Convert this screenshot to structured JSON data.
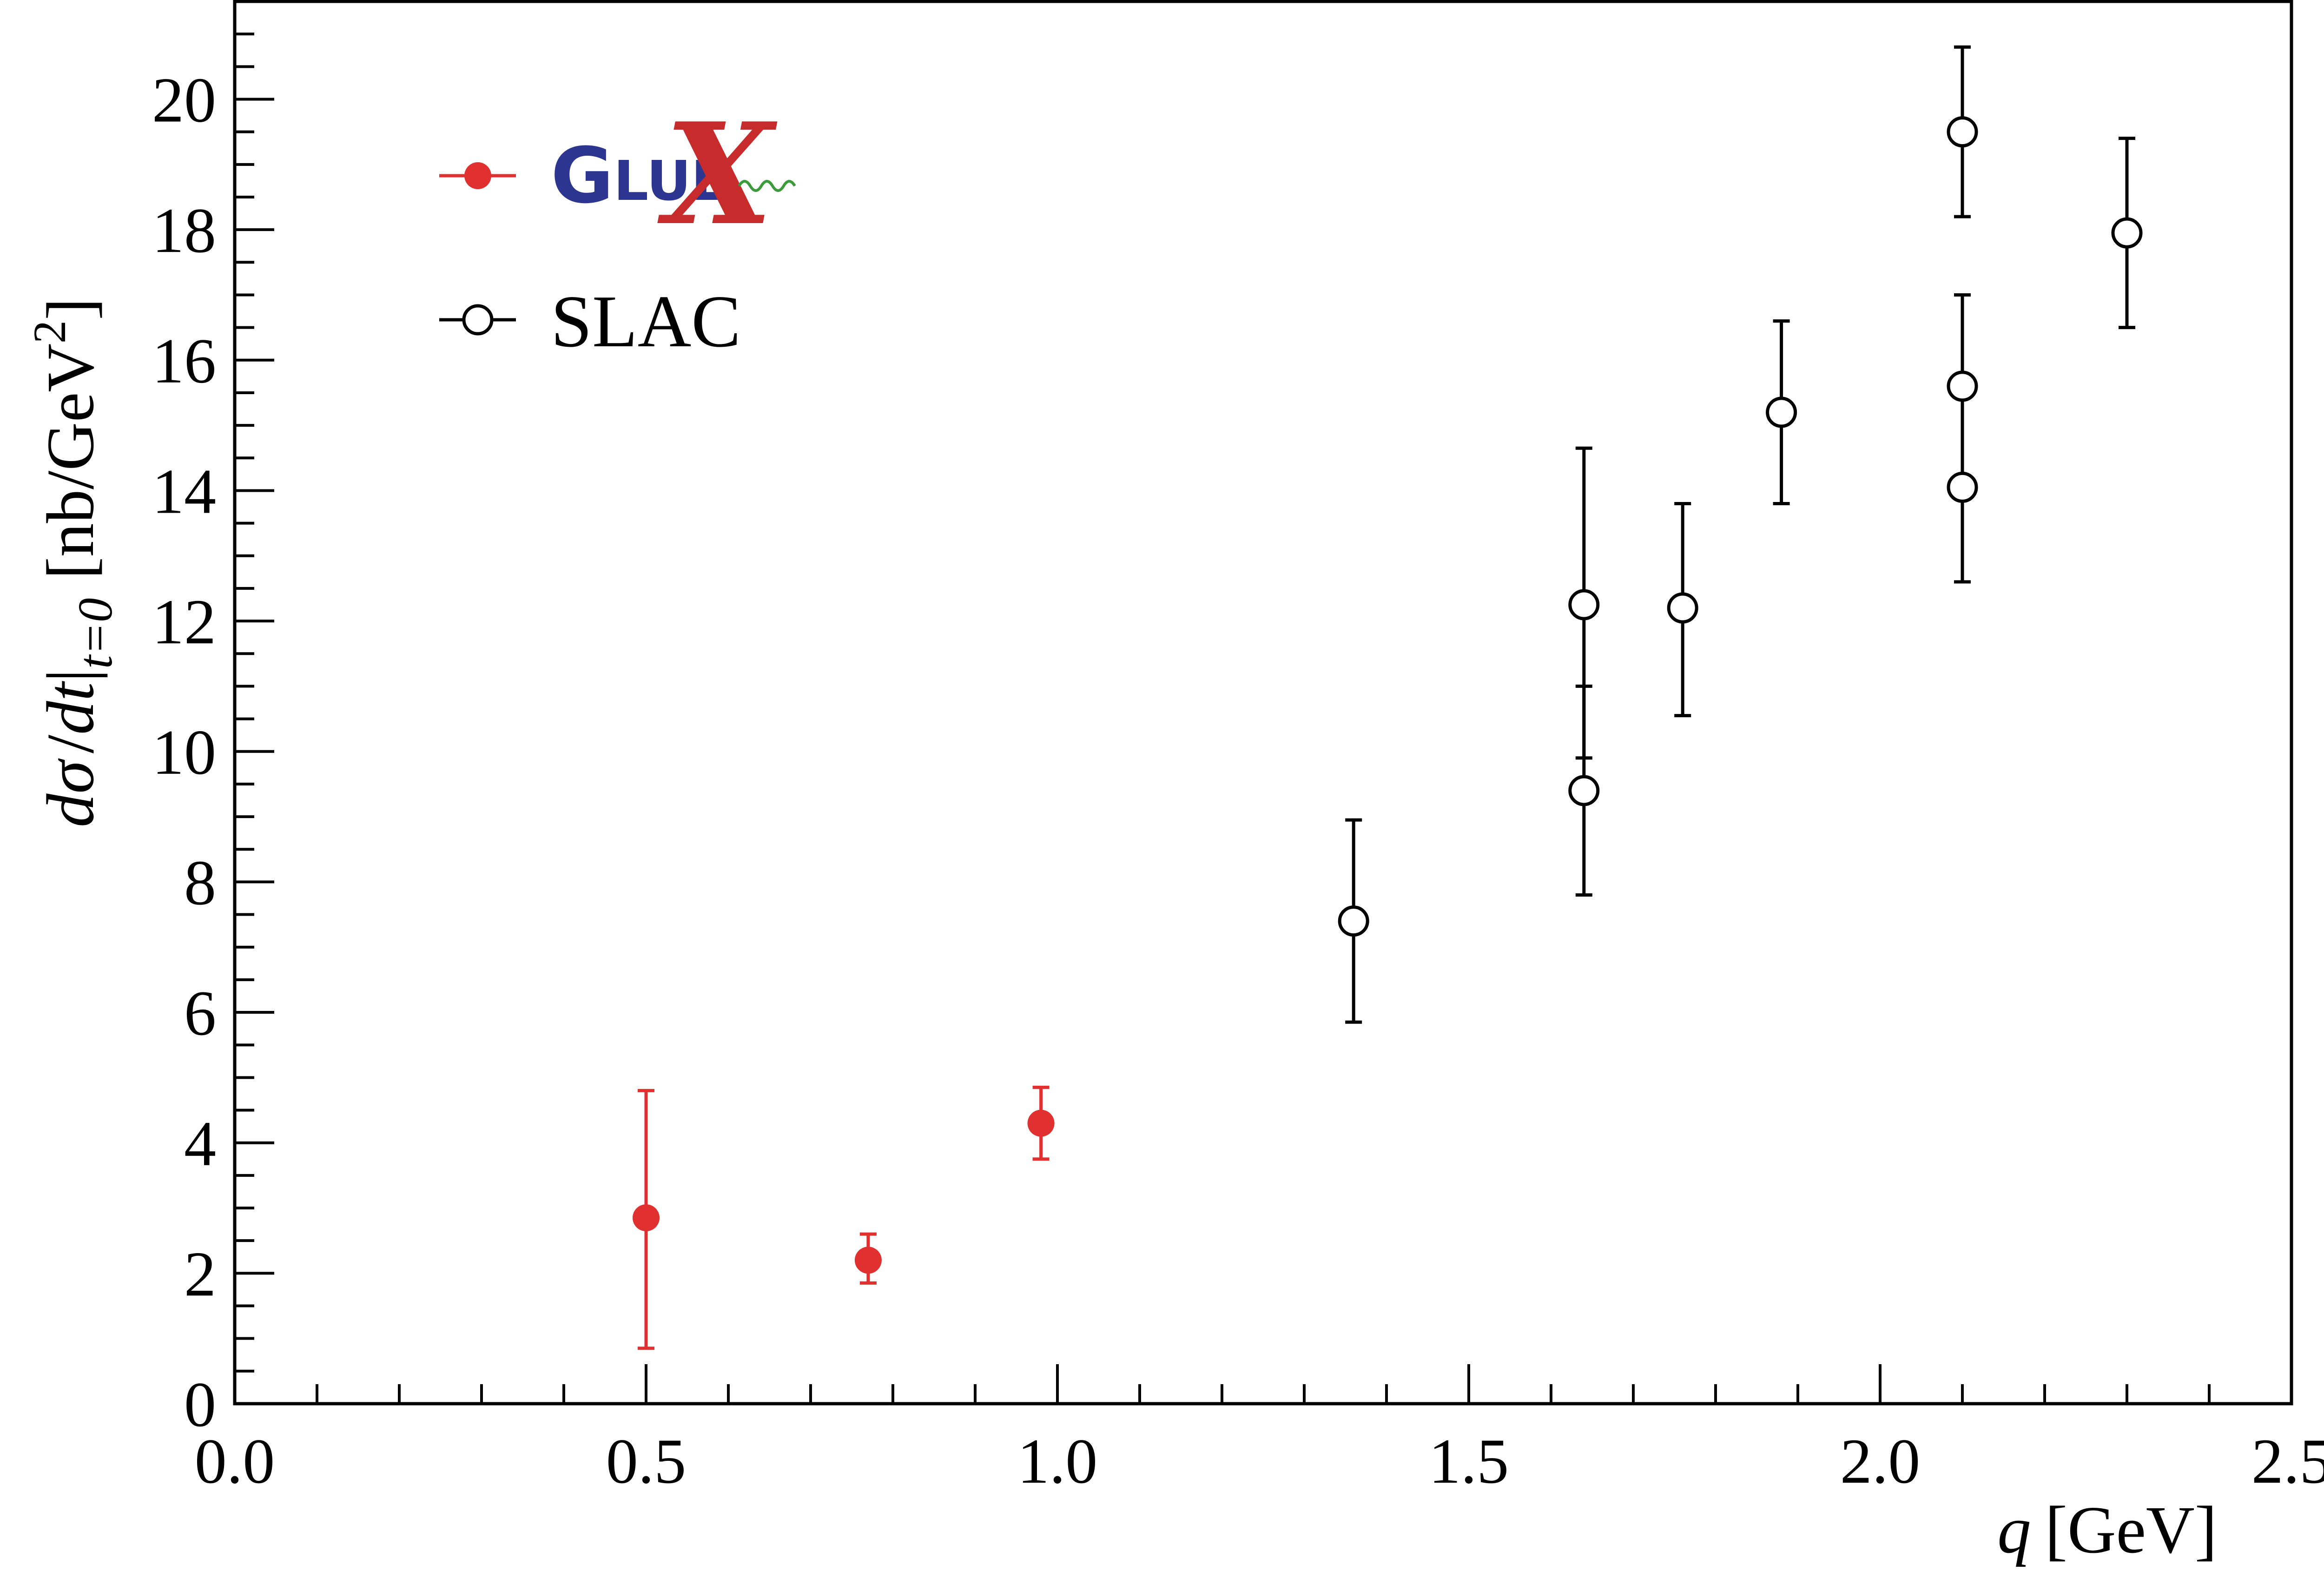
{
  "chart_data": {
    "type": "scatter",
    "title": "",
    "xlabel": {
      "var": "q",
      "unit": "[GeV]"
    },
    "ylabel": {
      "d1": "d",
      "sigma": "σ",
      "slash": "/",
      "d2": "dt",
      "bar": "|",
      "sub": "t=0",
      "unit_open": "[nb/GeV",
      "unit_sup": "2",
      "unit_close": "]"
    },
    "xlim": [
      0.0,
      2.5
    ],
    "ylim": [
      0,
      21.5
    ],
    "x_major_ticks": [
      0.0,
      0.5,
      1.0,
      1.5,
      2.0,
      2.5
    ],
    "x_tick_labels": [
      "0.0",
      "0.5",
      "1.0",
      "1.5",
      "2.0",
      "2.5"
    ],
    "x_minor_step": 0.1,
    "y_major_ticks": [
      0,
      2,
      4,
      6,
      8,
      10,
      12,
      14,
      16,
      18,
      20
    ],
    "y_tick_labels": [
      "0",
      "2",
      "4",
      "6",
      "8",
      "10",
      "12",
      "14",
      "16",
      "18",
      "20"
    ],
    "y_minor_step": 0.5,
    "grid": false,
    "legend_position": "top-left",
    "series": [
      {
        "name": "GlueX",
        "color": "#e03030",
        "marker": "filled-circle",
        "points": [
          {
            "x": 0.5,
            "y": 2.85,
            "err_low": 2.0,
            "err_high": 1.95
          },
          {
            "x": 0.77,
            "y": 2.2,
            "err_low": 0.35,
            "err_high": 0.4
          },
          {
            "x": 0.98,
            "y": 4.3,
            "err_low": 0.55,
            "err_high": 0.55
          }
        ]
      },
      {
        "name": "SLAC",
        "color": "#000000",
        "marker": "open-circle",
        "points": [
          {
            "x": 1.36,
            "y": 7.4,
            "err_low": 1.55,
            "err_high": 1.55
          },
          {
            "x": 1.64,
            "y": 12.25,
            "err_low": 2.35,
            "err_high": 2.4
          },
          {
            "x": 1.64,
            "y": 9.4,
            "err_low": 1.6,
            "err_high": 1.6
          },
          {
            "x": 1.76,
            "y": 12.2,
            "err_low": 1.65,
            "err_high": 1.6
          },
          {
            "x": 1.88,
            "y": 15.2,
            "err_low": 1.4,
            "err_high": 1.4
          },
          {
            "x": 2.1,
            "y": 19.5,
            "err_low": 1.3,
            "err_high": 1.3
          },
          {
            "x": 2.1,
            "y": 15.6,
            "err_low": 1.4,
            "err_high": 1.4
          },
          {
            "x": 2.1,
            "y": 14.05,
            "err_low": 1.45,
            "err_high": 1.45
          },
          {
            "x": 2.3,
            "y": 17.95,
            "err_low": 1.45,
            "err_high": 1.45
          }
        ]
      }
    ]
  },
  "legend": {
    "gluex": {
      "name": "GlueX",
      "logo_letters": [
        "G",
        "LUE",
        "X"
      ]
    },
    "slac": {
      "name": "SLAC"
    }
  },
  "colors": {
    "gluex_red": "#e03030",
    "gluex_blue": "#2c3590",
    "logo_x_red": "#c72b2b",
    "wave_green": "#3a9b3a",
    "axis": "#000000"
  }
}
